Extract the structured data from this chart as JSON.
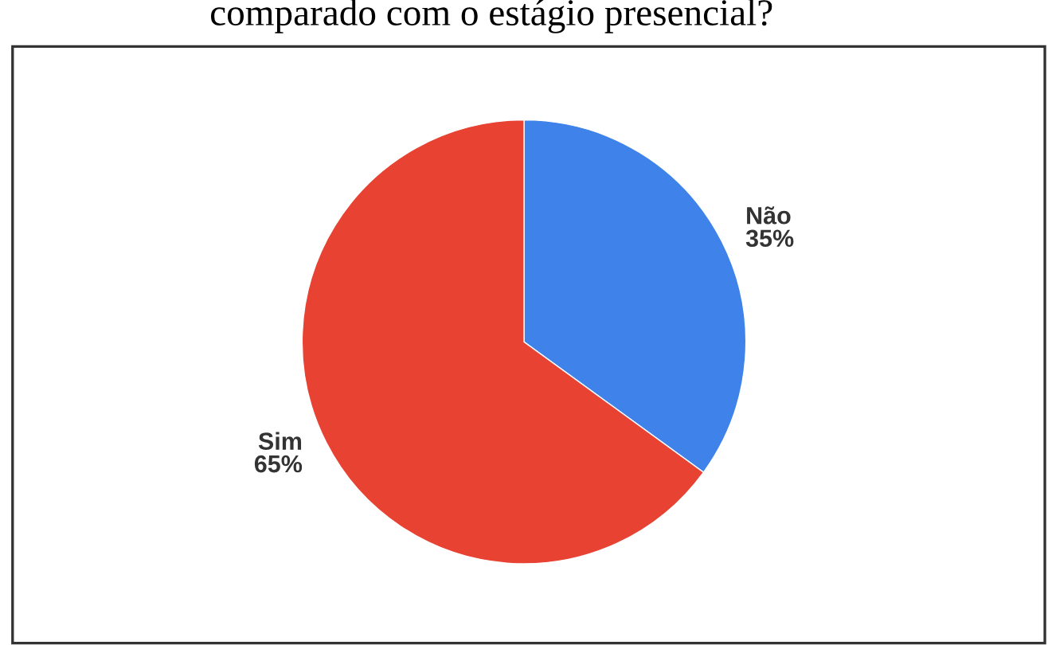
{
  "chart_data": {
    "type": "pie",
    "title": "comparado com o estágio presencial?",
    "categories": [
      "Não",
      "Sim"
    ],
    "values": [
      35,
      65
    ],
    "value_labels": [
      "35%",
      "65%"
    ],
    "colors": [
      "#3f83ea",
      "#e84233"
    ],
    "legend": false
  }
}
